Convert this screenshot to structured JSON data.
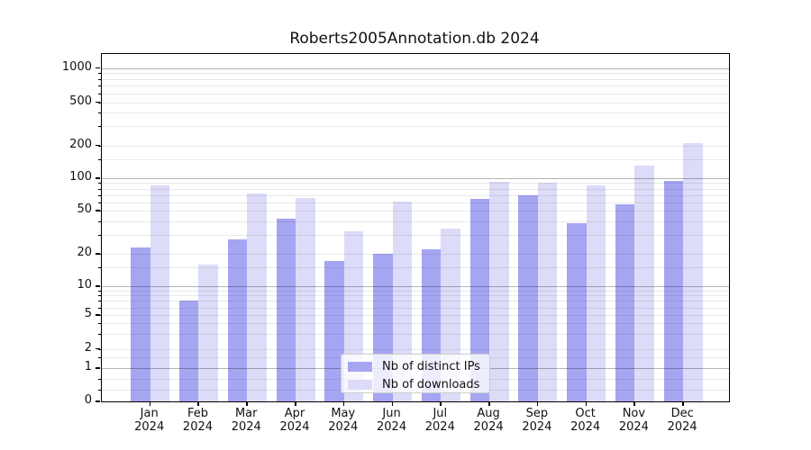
{
  "chart_data": {
    "type": "bar",
    "title": "Roberts2005Annotation.db 2024",
    "categories": [
      "Jan 2024",
      "Feb 2024",
      "Mar 2024",
      "Apr 2024",
      "May 2024",
      "Jun 2024",
      "Jul 2024",
      "Aug 2024",
      "Sep 2024",
      "Oct 2024",
      "Nov 2024",
      "Dec 2024"
    ],
    "series": [
      {
        "name": "Nb of distinct IPs",
        "color": "#a5a5f2",
        "values": [
          23,
          7,
          27,
          42,
          17,
          20,
          22,
          64,
          70,
          38,
          57,
          95
        ]
      },
      {
        "name": "Nb of downloads",
        "color": "#dcdcf8",
        "values": [
          86,
          16,
          72,
          65,
          32,
          61,
          34,
          92,
          90,
          85,
          130,
          210
        ]
      }
    ],
    "xlabel": "",
    "ylabel": "",
    "yscale": "symlog",
    "yticks": [
      0,
      1,
      2,
      5,
      10,
      20,
      50,
      100,
      200,
      500,
      1000
    ],
    "ylim": [
      0,
      1400
    ],
    "grid": true,
    "legend": {
      "position": "lower center",
      "labels": [
        "Nb of distinct IPs",
        "Nb of downloads"
      ]
    },
    "colors": {
      "bar_dark": "#a5a5f2",
      "bar_light": "#dcdcf8",
      "grid_major": "#b5b5b5",
      "grid_minor": "#e8e8e8",
      "axis": "#000000"
    }
  }
}
